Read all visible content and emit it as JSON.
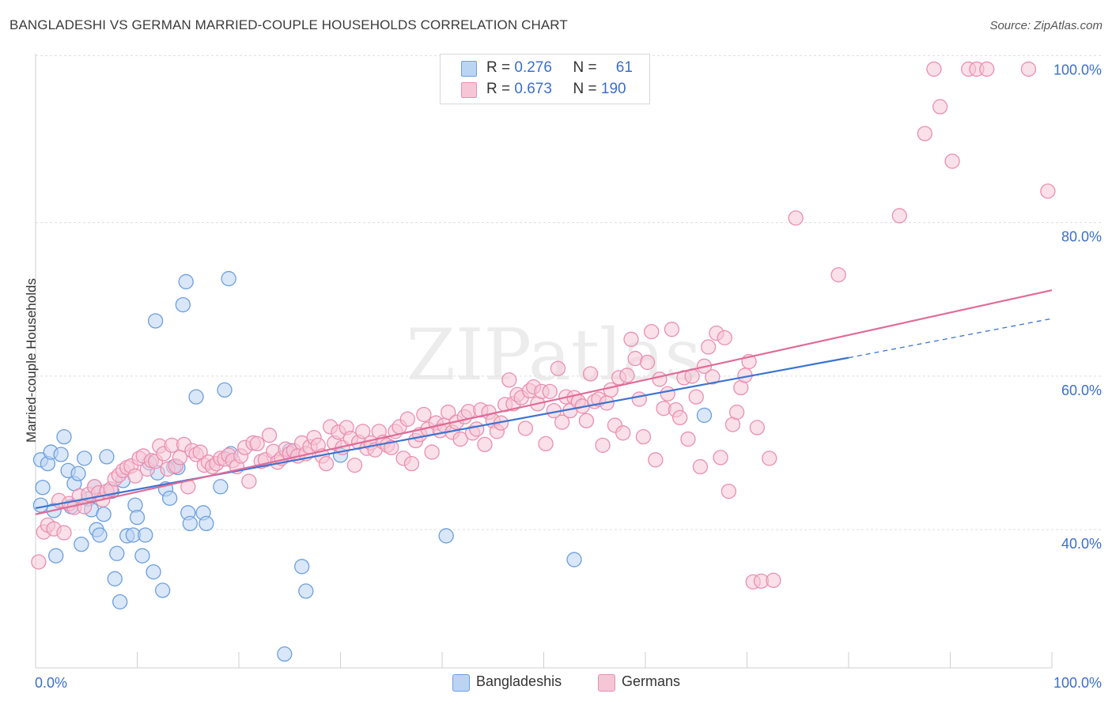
{
  "title": "BANGLADESHI VS GERMAN MARRIED-COUPLE HOUSEHOLDS CORRELATION CHART",
  "source": "Source: ZipAtlas.com",
  "watermark": "ZIPatlas",
  "colors": {
    "blue_fill": "#bcd4f4",
    "blue_stroke": "#6b9fe0",
    "blue_line": "#3b74d1",
    "pink_fill": "#f6c6d6",
    "pink_stroke": "#ea8fb0",
    "pink_line": "#e06c98",
    "grid": "#dddddd",
    "axis_label": "#3b6fc9"
  },
  "stats": [
    {
      "swatch": "blue",
      "r_label": "R =",
      "r_value": "0.276",
      "n_label": "N =",
      "n_value": "61"
    },
    {
      "swatch": "pink",
      "r_label": "R =",
      "r_value": "0.673",
      "n_label": "N =",
      "n_value": "190"
    }
  ],
  "legend": [
    {
      "name": "Bangladeshis",
      "swatch": "blue"
    },
    {
      "name": "Germans",
      "swatch": "pink"
    }
  ],
  "chart_data": {
    "type": "scatter",
    "title": "BANGLADESHI VS GERMAN MARRIED-COUPLE HOUSEHOLDS CORRELATION CHART",
    "xlabel": "",
    "ylabel": "Married-couple Households",
    "xlim": [
      0,
      100
    ],
    "ylim": [
      22,
      102
    ],
    "x_tick_labels": [
      {
        "value": 0,
        "label": "0.0%"
      },
      {
        "value": 100,
        "label": "100.0%"
      }
    ],
    "y_tick_labels": [
      {
        "value": 40,
        "label": "40.0%"
      },
      {
        "value": 60,
        "label": "60.0%"
      },
      {
        "value": 80,
        "label": "80.0%"
      },
      {
        "value": 100,
        "label": "100.0%"
      }
    ],
    "series": [
      {
        "name": "Bangladeshis",
        "color": "blue",
        "trend": {
          "x0": 0,
          "y0": 42.8,
          "x1": 80,
          "y1": 62.4,
          "dash_x1": 100,
          "dash_y1": 67.5
        },
        "points": [
          [
            0.5,
            43.2
          ],
          [
            0.5,
            49.1
          ],
          [
            0.7,
            45.5
          ],
          [
            1.2,
            48.6
          ],
          [
            1.5,
            50.1
          ],
          [
            1.8,
            42.5
          ],
          [
            2.0,
            36.6
          ],
          [
            2.5,
            49.8
          ],
          [
            2.8,
            52.1
          ],
          [
            3.2,
            47.7
          ],
          [
            3.5,
            43.0
          ],
          [
            3.8,
            46.0
          ],
          [
            4.2,
            47.3
          ],
          [
            4.5,
            38.1
          ],
          [
            4.8,
            49.3
          ],
          [
            5.2,
            44.0
          ],
          [
            5.5,
            42.6
          ],
          [
            5.8,
            45.6
          ],
          [
            6.0,
            40.0
          ],
          [
            6.3,
            39.3
          ],
          [
            6.7,
            42.0
          ],
          [
            7.0,
            49.5
          ],
          [
            7.5,
            45.0
          ],
          [
            7.8,
            33.6
          ],
          [
            8.0,
            36.9
          ],
          [
            8.3,
            30.6
          ],
          [
            8.6,
            46.4
          ],
          [
            9.0,
            39.2
          ],
          [
            9.6,
            39.3
          ],
          [
            9.8,
            43.2
          ],
          [
            10.0,
            41.6
          ],
          [
            10.5,
            36.6
          ],
          [
            10.8,
            39.3
          ],
          [
            11.2,
            48.7
          ],
          [
            11.6,
            34.5
          ],
          [
            11.8,
            67.2
          ],
          [
            12.0,
            47.4
          ],
          [
            12.5,
            32.1
          ],
          [
            12.8,
            45.3
          ],
          [
            13.2,
            44.1
          ],
          [
            13.6,
            48.2
          ],
          [
            14.0,
            48.1
          ],
          [
            14.5,
            69.3
          ],
          [
            14.8,
            72.3
          ],
          [
            15.0,
            42.2
          ],
          [
            15.2,
            40.8
          ],
          [
            15.8,
            57.3
          ],
          [
            16.5,
            42.2
          ],
          [
            16.8,
            40.8
          ],
          [
            18.2,
            45.6
          ],
          [
            18.6,
            58.2
          ],
          [
            19.0,
            72.7
          ],
          [
            19.2,
            49.9
          ],
          [
            24.5,
            23.8
          ],
          [
            25.0,
            50.3
          ],
          [
            26.2,
            35.2
          ],
          [
            26.6,
            32.0
          ],
          [
            30.0,
            49.7
          ],
          [
            40.4,
            39.2
          ],
          [
            53.0,
            36.1
          ],
          [
            65.8,
            54.9
          ]
        ]
      },
      {
        "name": "Germans",
        "color": "pink",
        "trend": {
          "x0": 0,
          "y0": 42.0,
          "x1": 100,
          "y1": 71.2
        },
        "points": [
          [
            0.3,
            35.8
          ],
          [
            0.8,
            39.7
          ],
          [
            1.2,
            40.6
          ],
          [
            1.8,
            40.1
          ],
          [
            2.3,
            43.8
          ],
          [
            2.8,
            39.6
          ],
          [
            3.3,
            43.4
          ],
          [
            3.8,
            42.9
          ],
          [
            4.3,
            44.4
          ],
          [
            4.8,
            43.0
          ],
          [
            5.2,
            44.6
          ],
          [
            5.8,
            45.6
          ],
          [
            6.2,
            44.8
          ],
          [
            6.6,
            43.9
          ],
          [
            7.0,
            45.0
          ],
          [
            7.4,
            45.3
          ],
          [
            7.8,
            46.6
          ],
          [
            8.2,
            47.1
          ],
          [
            8.6,
            47.7
          ],
          [
            9.0,
            48.1
          ],
          [
            9.4,
            48.3
          ],
          [
            9.8,
            47.0
          ],
          [
            10.2,
            49.3
          ],
          [
            10.6,
            49.6
          ],
          [
            11.0,
            47.9
          ],
          [
            11.4,
            49.0
          ],
          [
            11.8,
            48.9
          ],
          [
            12.2,
            50.9
          ],
          [
            12.6,
            49.9
          ],
          [
            13.0,
            47.9
          ],
          [
            13.4,
            51.0
          ],
          [
            13.8,
            48.3
          ],
          [
            14.2,
            49.4
          ],
          [
            14.6,
            51.1
          ],
          [
            15.0,
            45.6
          ],
          [
            15.4,
            50.3
          ],
          [
            15.8,
            49.8
          ],
          [
            16.2,
            50.1
          ],
          [
            16.6,
            48.4
          ],
          [
            17.0,
            48.8
          ],
          [
            17.4,
            48.2
          ],
          [
            17.8,
            48.6
          ],
          [
            18.2,
            49.3
          ],
          [
            18.6,
            49.2
          ],
          [
            19.0,
            49.7
          ],
          [
            19.4,
            49.0
          ],
          [
            19.8,
            48.2
          ],
          [
            20.2,
            49.6
          ],
          [
            20.6,
            50.7
          ],
          [
            21.0,
            46.3
          ],
          [
            21.4,
            51.3
          ],
          [
            21.8,
            51.2
          ],
          [
            22.2,
            48.9
          ],
          [
            22.6,
            49.1
          ],
          [
            23.0,
            52.3
          ],
          [
            23.4,
            50.2
          ],
          [
            23.8,
            48.8
          ],
          [
            24.2,
            49.3
          ],
          [
            24.6,
            50.5
          ],
          [
            25.0,
            49.9
          ],
          [
            25.4,
            50.3
          ],
          [
            25.8,
            49.6
          ],
          [
            26.2,
            51.3
          ],
          [
            26.6,
            49.9
          ],
          [
            27.0,
            50.8
          ],
          [
            27.4,
            52.0
          ],
          [
            27.8,
            51.0
          ],
          [
            28.2,
            49.6
          ],
          [
            28.6,
            48.6
          ],
          [
            29.0,
            53.4
          ],
          [
            29.4,
            51.3
          ],
          [
            29.8,
            52.7
          ],
          [
            30.2,
            50.7
          ],
          [
            30.6,
            53.3
          ],
          [
            31.0,
            51.9
          ],
          [
            31.4,
            48.4
          ],
          [
            31.8,
            51.4
          ],
          [
            32.2,
            52.8
          ],
          [
            32.6,
            50.6
          ],
          [
            33.0,
            51.3
          ],
          [
            33.4,
            50.4
          ],
          [
            33.8,
            52.8
          ],
          [
            34.2,
            51.4
          ],
          [
            34.6,
            51.0
          ],
          [
            35.0,
            50.7
          ],
          [
            35.4,
            52.8
          ],
          [
            35.8,
            53.4
          ],
          [
            36.2,
            49.3
          ],
          [
            36.6,
            54.4
          ],
          [
            37.0,
            48.6
          ],
          [
            37.4,
            51.6
          ],
          [
            37.8,
            52.4
          ],
          [
            38.2,
            55.0
          ],
          [
            38.6,
            53.1
          ],
          [
            39.0,
            50.1
          ],
          [
            39.4,
            53.9
          ],
          [
            39.8,
            52.9
          ],
          [
            40.2,
            53.6
          ],
          [
            40.6,
            55.3
          ],
          [
            41.0,
            52.7
          ],
          [
            41.4,
            54.0
          ],
          [
            41.8,
            51.8
          ],
          [
            42.2,
            54.7
          ],
          [
            42.6,
            55.4
          ],
          [
            43.0,
            52.6
          ],
          [
            43.4,
            53.1
          ],
          [
            43.8,
            55.6
          ],
          [
            44.2,
            51.1
          ],
          [
            44.6,
            55.3
          ],
          [
            45.0,
            54.2
          ],
          [
            45.4,
            52.8
          ],
          [
            45.8,
            53.9
          ],
          [
            46.2,
            56.3
          ],
          [
            46.6,
            59.5
          ],
          [
            47.0,
            56.4
          ],
          [
            47.4,
            57.6
          ],
          [
            47.8,
            57.2
          ],
          [
            48.2,
            53.2
          ],
          [
            48.6,
            58.1
          ],
          [
            49.0,
            58.6
          ],
          [
            49.4,
            56.4
          ],
          [
            49.8,
            58.0
          ],
          [
            50.2,
            51.2
          ],
          [
            50.6,
            58.0
          ],
          [
            51.0,
            55.5
          ],
          [
            51.4,
            61.0
          ],
          [
            51.8,
            54.0
          ],
          [
            52.2,
            57.3
          ],
          [
            52.6,
            55.5
          ],
          [
            53.0,
            57.2
          ],
          [
            53.4,
            56.7
          ],
          [
            53.8,
            56.1
          ],
          [
            54.2,
            54.2
          ],
          [
            54.6,
            60.3
          ],
          [
            55.0,
            56.7
          ],
          [
            55.4,
            57.0
          ],
          [
            55.8,
            51.0
          ],
          [
            56.2,
            56.5
          ],
          [
            56.6,
            58.2
          ],
          [
            57.0,
            53.6
          ],
          [
            57.4,
            59.8
          ],
          [
            57.8,
            52.6
          ],
          [
            58.2,
            60.1
          ],
          [
            58.6,
            64.8
          ],
          [
            59.0,
            62.3
          ],
          [
            59.4,
            57.0
          ],
          [
            59.8,
            52.1
          ],
          [
            60.2,
            61.8
          ],
          [
            60.6,
            65.8
          ],
          [
            61.0,
            49.1
          ],
          [
            61.4,
            59.6
          ],
          [
            61.8,
            55.8
          ],
          [
            62.2,
            57.7
          ],
          [
            62.6,
            66.1
          ],
          [
            63.0,
            55.6
          ],
          [
            63.4,
            54.6
          ],
          [
            63.8,
            59.8
          ],
          [
            64.2,
            51.8
          ],
          [
            64.6,
            60.0
          ],
          [
            65.0,
            57.3
          ],
          [
            65.4,
            48.2
          ],
          [
            65.8,
            61.3
          ],
          [
            66.2,
            63.8
          ],
          [
            66.6,
            59.9
          ],
          [
            67.0,
            65.6
          ],
          [
            67.4,
            49.4
          ],
          [
            67.8,
            65.0
          ],
          [
            68.2,
            45.0
          ],
          [
            68.6,
            53.7
          ],
          [
            69.0,
            55.3
          ],
          [
            69.4,
            58.5
          ],
          [
            69.8,
            60.1
          ],
          [
            70.2,
            61.9
          ],
          [
            70.6,
            33.2
          ],
          [
            71.0,
            53.3
          ],
          [
            71.4,
            33.3
          ],
          [
            72.2,
            49.3
          ],
          [
            72.6,
            33.4
          ],
          [
            74.8,
            80.6
          ],
          [
            79.0,
            73.2
          ],
          [
            85.0,
            80.9
          ],
          [
            87.5,
            91.6
          ],
          [
            88.4,
            100.0
          ],
          [
            89.0,
            95.1
          ],
          [
            90.2,
            88.0
          ],
          [
            91.8,
            100.0
          ],
          [
            92.6,
            100.0
          ],
          [
            93.6,
            100.0
          ],
          [
            97.7,
            100.0
          ],
          [
            99.6,
            84.1
          ]
        ]
      }
    ]
  }
}
